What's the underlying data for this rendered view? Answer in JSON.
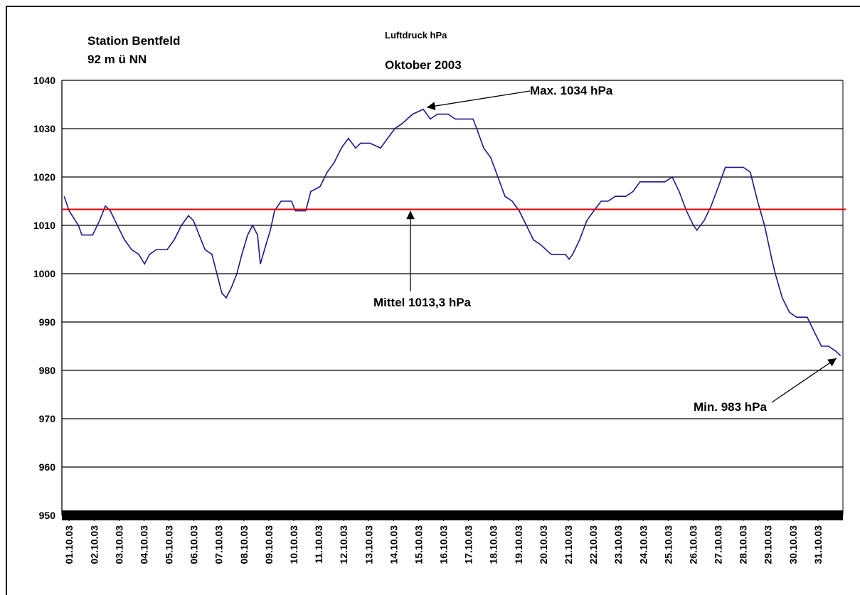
{
  "chart_data": {
    "type": "line",
    "title": "Luftdruck hPa",
    "subtitle": "Oktober 2003",
    "station": "Station Bentfeld",
    "elevation": "92 m ü NN",
    "color": "#1a1a8c",
    "mean": 1013.3,
    "mean_color": "#e00000",
    "annotations": {
      "max": "Max. 1034 hPa",
      "mean": "Mittel 1013,3 hPa",
      "min": "Min. 983 hPa"
    },
    "grid": true,
    "xlim": [
      0.71,
      32.0
    ],
    "ylim": [
      950,
      1040
    ],
    "yticks": [
      950,
      960,
      970,
      980,
      990,
      1000,
      1010,
      1020,
      1030,
      1040
    ],
    "xticks": [
      {
        "value": 1,
        "label": "01.10.03"
      },
      {
        "value": 2,
        "label": "02.10.03"
      },
      {
        "value": 3,
        "label": "03.10.03"
      },
      {
        "value": 4,
        "label": "04.10.03"
      },
      {
        "value": 5,
        "label": "05.10.03"
      },
      {
        "value": 6,
        "label": "06.10.03"
      },
      {
        "value": 7,
        "label": "07.10.03"
      },
      {
        "value": 8,
        "label": "08.10.03"
      },
      {
        "value": 9,
        "label": "09.10.03"
      },
      {
        "value": 10,
        "label": "10.10.03"
      },
      {
        "value": 11,
        "label": "11.10.03"
      },
      {
        "value": 12,
        "label": "12.10.03"
      },
      {
        "value": 13,
        "label": "13.10.03"
      },
      {
        "value": 14,
        "label": "14.10.03"
      },
      {
        "value": 15,
        "label": "15.10.03"
      },
      {
        "value": 16,
        "label": "16.10.03"
      },
      {
        "value": 17,
        "label": "17.10.03"
      },
      {
        "value": 18,
        "label": "18.10.03"
      },
      {
        "value": 19,
        "label": "19.10.03"
      },
      {
        "value": 20,
        "label": "20.10.03"
      },
      {
        "value": 21,
        "label": "21.10.03"
      },
      {
        "value": 22,
        "label": "22.10.03"
      },
      {
        "value": 23,
        "label": "23.10.03"
      },
      {
        "value": 24,
        "label": "24.10.03"
      },
      {
        "value": 25,
        "label": "25.10.03"
      },
      {
        "value": 26,
        "label": "26.10.03"
      },
      {
        "value": 27,
        "label": "27.10.03"
      },
      {
        "value": 28,
        "label": "28.10.03"
      },
      {
        "value": 29,
        "label": "29.10.03"
      },
      {
        "value": 30,
        "label": "30.10.03"
      },
      {
        "value": 31,
        "label": "31.10.03"
      }
    ],
    "x": [
      0.8,
      1.0,
      1.37,
      1.51,
      1.94,
      2.22,
      2.45,
      2.65,
      2.93,
      3.22,
      3.5,
      3.79,
      4.02,
      4.22,
      4.5,
      4.93,
      5.21,
      5.5,
      5.78,
      5.98,
      6.21,
      6.44,
      6.72,
      6.92,
      7.12,
      7.29,
      7.49,
      7.72,
      7.92,
      8.15,
      8.35,
      8.55,
      8.66,
      8.83,
      9.06,
      9.23,
      9.49,
      9.91,
      10.06,
      10.48,
      10.68,
      11.05,
      11.34,
      11.62,
      11.91,
      12.19,
      12.48,
      12.68,
      13.05,
      13.48,
      13.76,
      14.05,
      14.33,
      14.76,
      15.19,
      15.47,
      15.76,
      16.18,
      16.47,
      17.18,
      17.33,
      17.61,
      17.89,
      18.18,
      18.46,
      18.75,
      19.03,
      19.32,
      19.6,
      19.89,
      20.31,
      20.88,
      21.03,
      21.17,
      21.45,
      21.74,
      22.02,
      22.31,
      22.59,
      22.88,
      23.3,
      23.59,
      23.87,
      24.3,
      24.87,
      25.16,
      25.44,
      25.73,
      26.01,
      26.15,
      26.44,
      26.72,
      27.01,
      27.29,
      27.58,
      28.01,
      28.29,
      28.58,
      28.86,
      29.15,
      29.29,
      29.57,
      29.86,
      30.14,
      30.57,
      30.85,
      31.14,
      31.42,
      31.71,
      31.91
    ],
    "values": [
      1016,
      1013,
      1010,
      1008,
      1008,
      1011,
      1014,
      1013,
      1010,
      1007,
      1005,
      1004,
      1002,
      1004,
      1005,
      1005,
      1007,
      1010,
      1012,
      1011,
      1008,
      1005,
      1004,
      1000,
      996,
      995,
      997,
      1000,
      1004,
      1008,
      1010,
      1008,
      1002,
      1005,
      1009,
      1013,
      1015,
      1015,
      1013,
      1013,
      1017,
      1018,
      1021,
      1023,
      1026,
      1028,
      1026,
      1027,
      1027,
      1026,
      1028,
      1030,
      1031,
      1033,
      1034,
      1032,
      1033,
      1033,
      1032,
      1032,
      1030,
      1026,
      1024,
      1020,
      1016,
      1015,
      1013,
      1010,
      1007,
      1006,
      1004,
      1004,
      1003,
      1004,
      1007,
      1011,
      1013,
      1015,
      1015,
      1016,
      1016,
      1017,
      1019,
      1019,
      1019,
      1020,
      1017,
      1013,
      1010,
      1009,
      1011,
      1014,
      1018,
      1022,
      1022,
      1022,
      1021,
      1015,
      1010,
      1003,
      1000,
      995,
      992,
      991,
      991,
      988,
      985,
      985,
      984,
      983
    ]
  }
}
